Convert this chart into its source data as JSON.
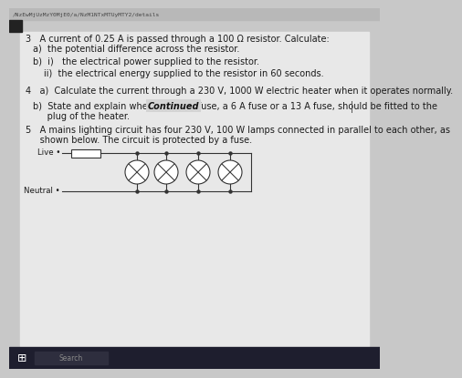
{
  "background_color": "#c8c8c8",
  "page_bg": "#e0e0e0",
  "content_bg": "#e8e8e8",
  "url_text": "/NzEwMjUzMzY0MjE0/a/NzM1NTxMTUyMTY2/details",
  "q3_text": "3   A current of 0.25 A is passed through a 100 Ω resistor. Calculate:",
  "q3a_text": "a)  the potential difference across the resistor.",
  "q3b_text": "b)  i)   the electrical power supplied to the resistor.",
  "q3bii_text": "ii)  the electrical energy supplied to the resistor in 60 seconds.",
  "q4_text": "4   a)  Calculate the current through a 230 V, 1000 W electric heater when it operates normally.",
  "continued_text": "Continued",
  "q4b_line1": "b)  State and explain when use S3 A fuse, a 6 A fuse or a 13 A fuse, should be fitted to the",
  "q4b_line2": "     plug of the heater.",
  "q5_line1": "5   A mains lighting circuit has four 230 V, 100 W lamps connected in parallel to each other, as",
  "q5_line2": "     shown below. The circuit is protected by a fuse.",
  "live_label": "Live •",
  "neutral_label": "Neutral •",
  "text_color": "#1a1a1a",
  "font_size": 7.0,
  "small_font": 6.2,
  "taskbar_color": "#1a1a2e"
}
